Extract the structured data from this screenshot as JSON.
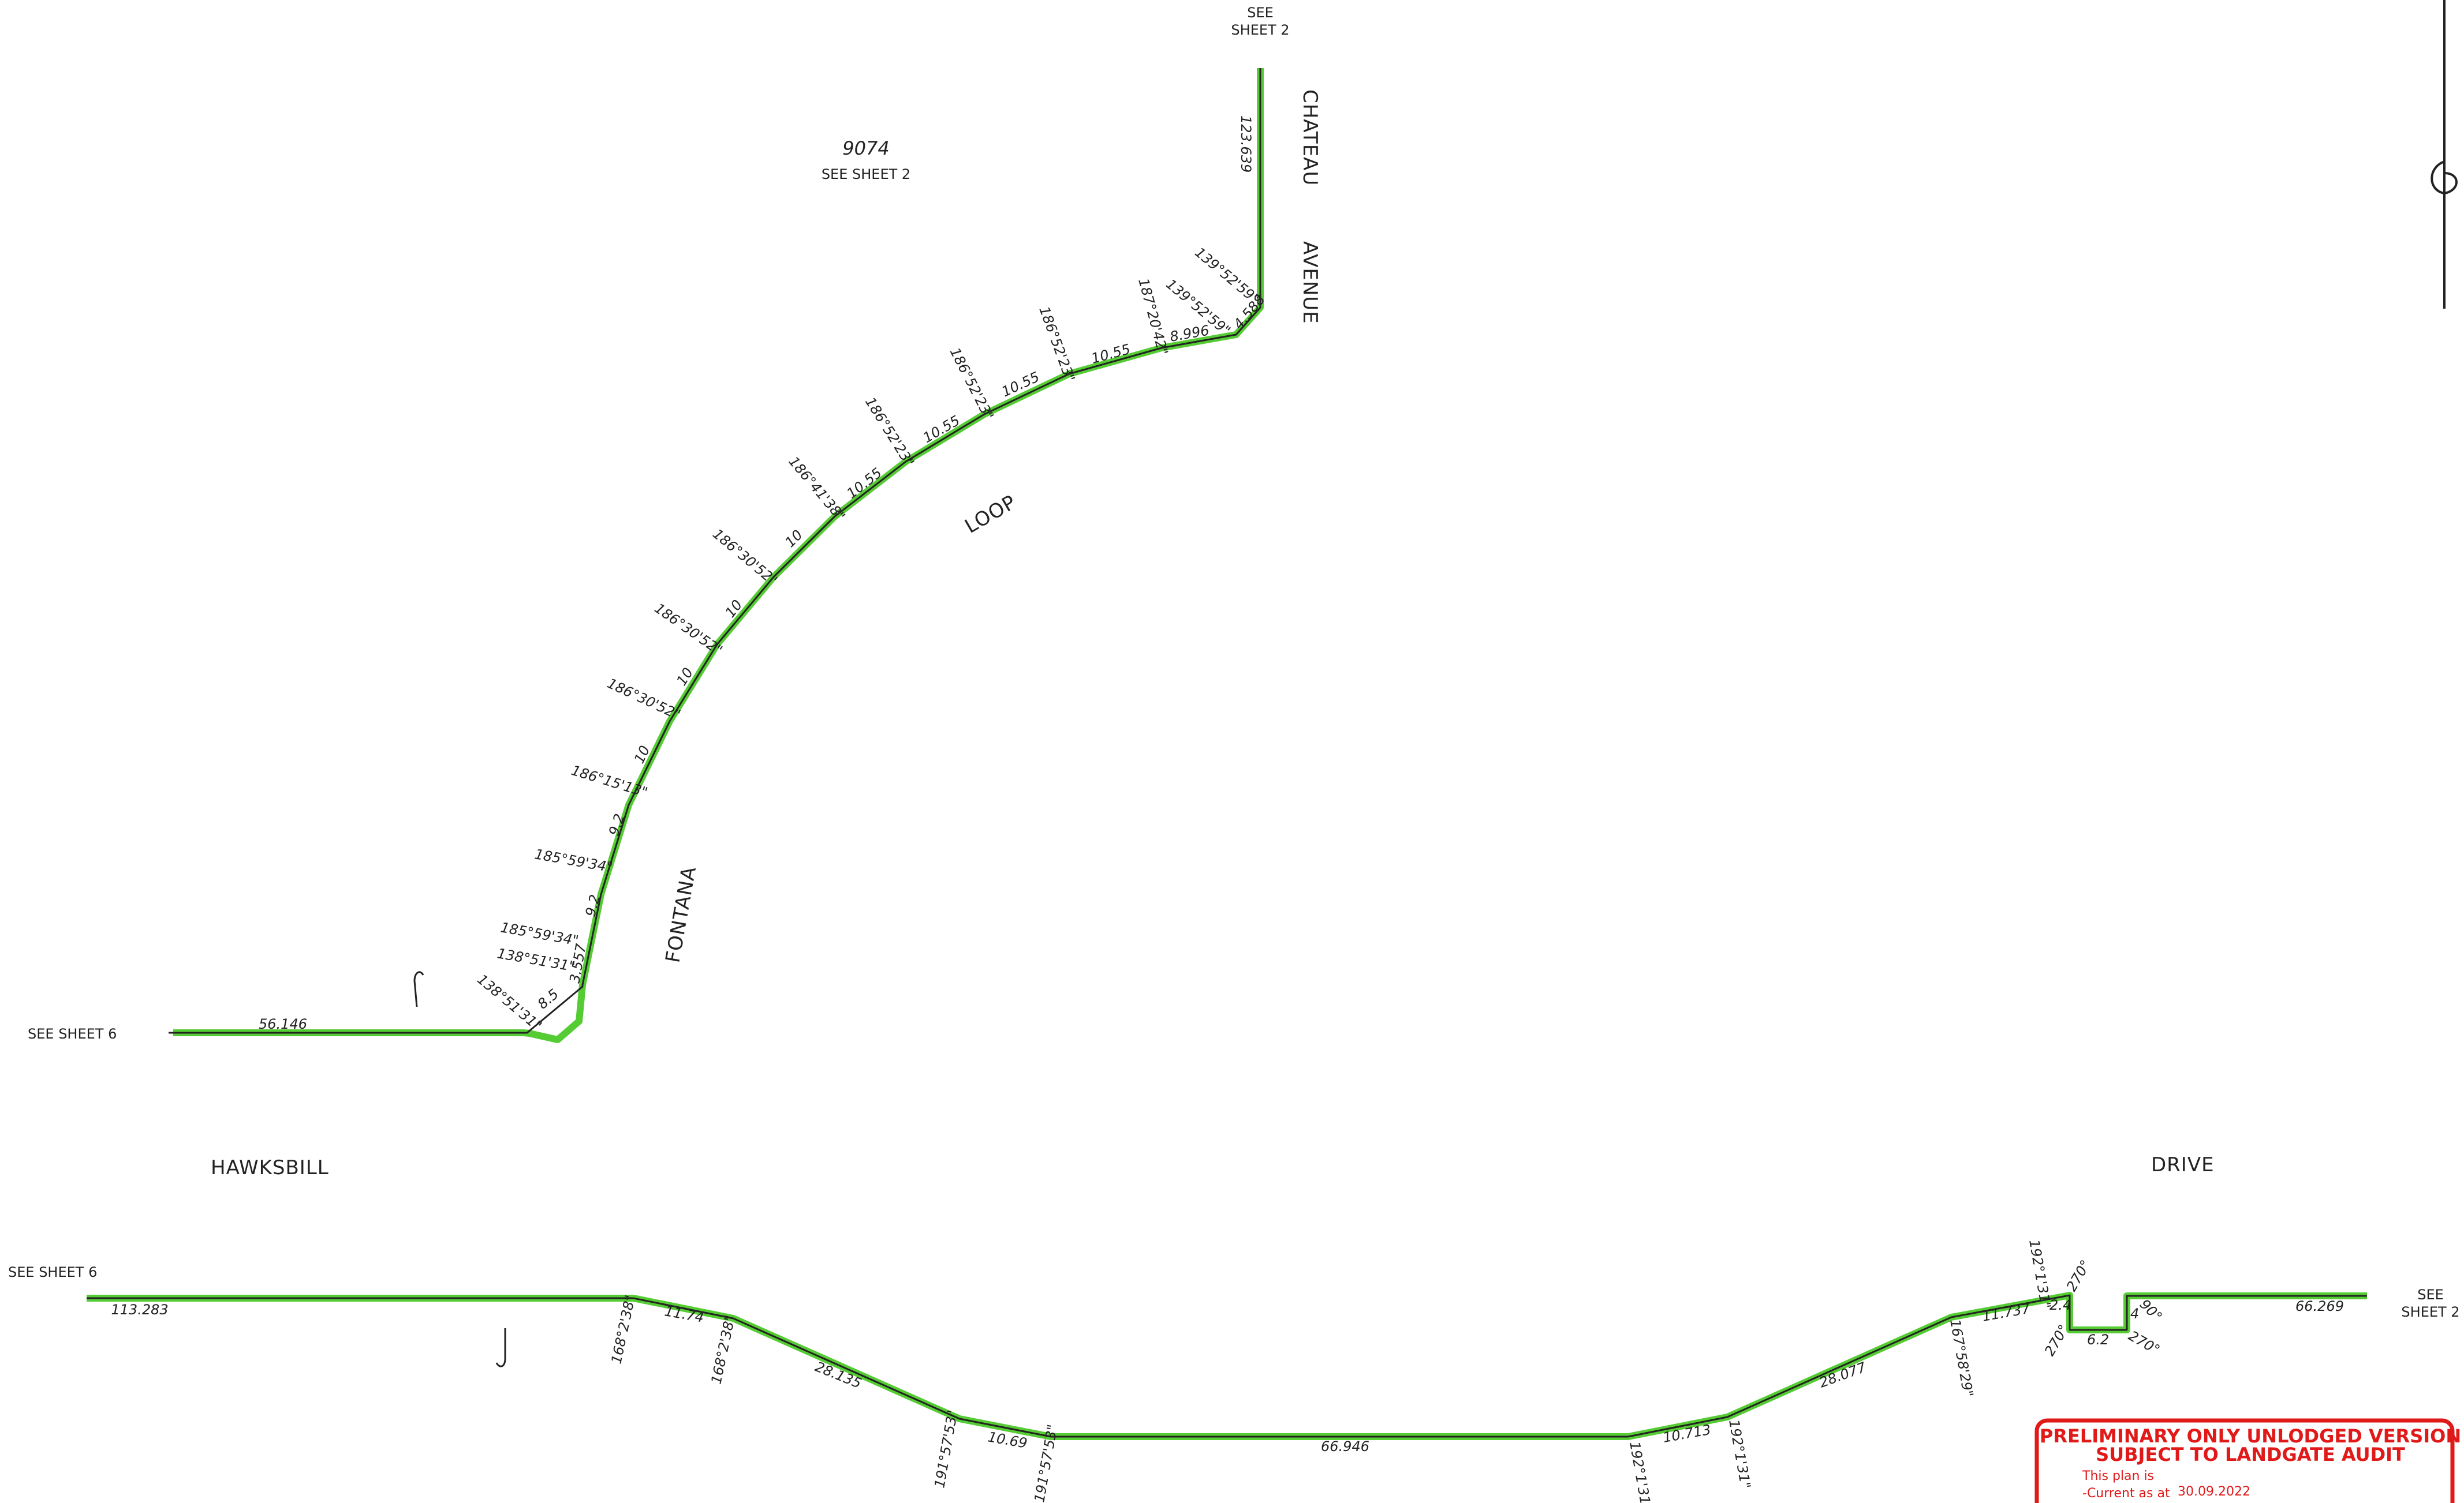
{
  "lot": {
    "number": "9074",
    "ref": "SEE SHEET 2"
  },
  "streets": {
    "chateau": "CHATEAU",
    "avenue": "AVENUE",
    "loop": "LOOP",
    "fontana": "FONTANA",
    "hawksbill": "HAWKSBILL",
    "drive": "DRIVE"
  },
  "sheet_refs": {
    "top": "SEE SHEET 2",
    "left_upper": "SEE SHEET 6",
    "left_lower": "SEE SHEET 6",
    "right": "SEE SHEET 2"
  },
  "upper_boundary": {
    "distances": [
      "123.639",
      "4.588",
      "8.996",
      "10.55",
      "10.55",
      "10.55",
      "10.55",
      "10",
      "10",
      "10",
      "10",
      "9.2",
      "9.2",
      "3.557",
      "8.5",
      "56.146"
    ],
    "bearings": [
      "139°52'59\"",
      "139°52'59\"",
      "187°20'42\"",
      "186°52'23\"",
      "186°52'23\"",
      "186°52'23\"",
      "186°41'38\"",
      "186°30'52\"",
      "186°30'52\"",
      "186°30'52\"",
      "186°15'13\"",
      "185°59'34\"",
      "185°59'34\"",
      "138°51'31\"",
      "138°51'31\""
    ]
  },
  "lower_boundary": {
    "distances": [
      "113.283",
      "11.74",
      "28.135",
      "10.69",
      "66.946",
      "10.713",
      "28.077",
      "11.737",
      "2.4",
      "6.2",
      "4",
      "66.269"
    ],
    "bearings": [
      "168°2'38\"",
      "168°2'38\"",
      "191°57'53\"",
      "191°57'53\"",
      "192°1'31\"",
      "192°1'31\"",
      "167°58'29\"",
      "192°1'31\"",
      "270°",
      "270°",
      "90°",
      "270°"
    ]
  },
  "stamp": {
    "line1": "PRELIMINARY ONLY UNLODGED VERSION",
    "line2": "SUBJECT TO LANDGATE AUDIT",
    "line3": "This plan is",
    "line4": "-Current as at",
    "date": "30.09.2022"
  },
  "colors": {
    "boundary": "#55cc33",
    "ink": "#222222",
    "stamp": "#e01919"
  }
}
